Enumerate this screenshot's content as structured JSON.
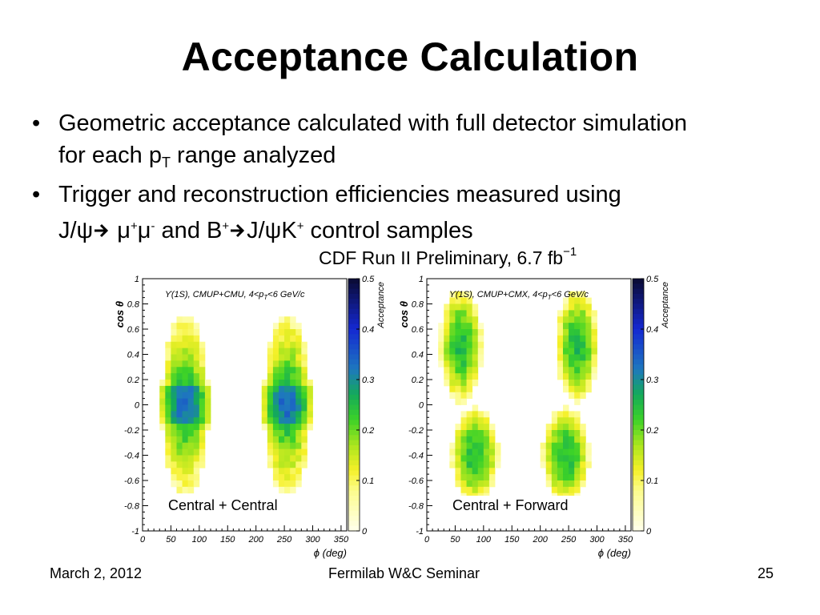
{
  "slide": {
    "title": "Acceptance Calculation",
    "bullets": [
      {
        "line1": "Geometric acceptance calculated with full detector simulation",
        "line2_pre": "for each p",
        "line2_sub": "T",
        "line2_post": " range analyzed"
      },
      {
        "line1": "Trigger and reconstruction efficiencies measured using",
        "l2_a": "J/ψ",
        "l2_b": " μ",
        "l2_sup1": "+",
        "l2_c": "μ",
        "l2_sup2": "-",
        "l2_d": " and B",
        "l2_sup3": "+",
        "l2_e": "J/ψK",
        "l2_sup4": "+",
        "l2_f": " control samples"
      }
    ],
    "bullet_char": "•",
    "prelim_text": "CDF Run II  Preliminary, 6.7 fb",
    "prelim_sup": "−1"
  },
  "plots": [
    {
      "label_html": "ϒ(1S), CMUP+CMU, 4<p",
      "label_sub": "T",
      "label_tail": "<6 GeV/c",
      "caption": "Central + Central"
    },
    {
      "label_html": "ϒ(1S), CMUP+CMX, 4<p",
      "label_sub": "T",
      "label_tail": "<6 GeV/c",
      "caption": "Central + Forward"
    }
  ],
  "axes": {
    "ylabel": "cos θ",
    "xlabel": "ϕ  (deg)",
    "yticks": [
      "1",
      "0.8",
      "0.6",
      "0.4",
      "0.2",
      "0",
      "-0.2",
      "-0.4",
      "-0.6",
      "-0.8",
      "-1"
    ],
    "xticks": [
      "0",
      "50",
      "100",
      "150",
      "200",
      "250",
      "300",
      "350"
    ],
    "zlabel": "Acceptance",
    "zticks": [
      "0.5",
      "0.4",
      "0.3",
      "0.2",
      "0.1",
      "0"
    ]
  },
  "footer": {
    "date": "March 2, 2012",
    "event": "Fermilab W&C Seminar",
    "page": "25"
  }
}
